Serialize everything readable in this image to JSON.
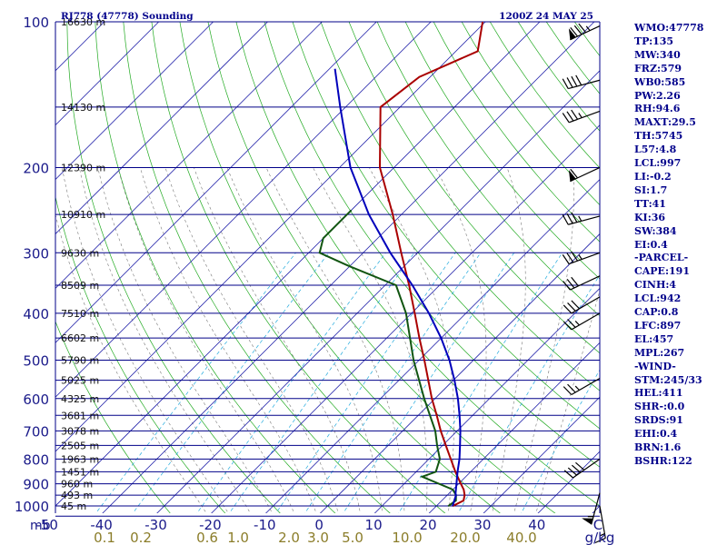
{
  "chart_data": {
    "type": "line",
    "title": "RJ778 (47778) Sounding",
    "time_label": "1200Z 24 MAY 25",
    "p_ticks": [
      100,
      200,
      300,
      400,
      500,
      600,
      700,
      800,
      900,
      1000
    ],
    "p_range": [
      100,
      1050
    ],
    "t_range": [
      -50,
      50
    ],
    "t_ticks": [
      -50,
      -40,
      -30,
      -20,
      -10,
      0,
      10,
      20,
      30,
      40
    ],
    "p_unit": "mb",
    "t_unit": "C",
    "heights": [
      {
        "p": 100,
        "label": "16630 m"
      },
      {
        "p": 150,
        "label": "14130 m"
      },
      {
        "p": 200,
        "label": "12390 m"
      },
      {
        "p": 250,
        "label": "10910 m"
      },
      {
        "p": 300,
        "label": "9630 m"
      },
      {
        "p": 350,
        "label": "8509 m"
      },
      {
        "p": 400,
        "label": "7510 m"
      },
      {
        "p": 450,
        "label": "6602 m"
      },
      {
        "p": 500,
        "label": "5790 m"
      },
      {
        "p": 550,
        "label": "5025 m"
      },
      {
        "p": 600,
        "label": "4325 m"
      },
      {
        "p": 650,
        "label": "3681 m"
      },
      {
        "p": 700,
        "label": "3078 m"
      },
      {
        "p": 750,
        "label": "2505 m"
      },
      {
        "p": 800,
        "label": "1963 m"
      },
      {
        "p": 850,
        "label": "1451 m"
      },
      {
        "p": 900,
        "label": "960 m"
      },
      {
        "p": 950,
        "label": "493 m"
      },
      {
        "p": 1000,
        "label": "45 m"
      }
    ],
    "mixing_ratio_labels": [
      "0.1",
      "0.2",
      "0.6",
      "1.0",
      "2.0",
      "3.0",
      "5.0",
      "10.0",
      "20.0",
      "40.0"
    ],
    "mixing_ratio_values": [
      0.1,
      0.2,
      0.6,
      1.0,
      2.0,
      3.0,
      5.0,
      10.0,
      20.0,
      40.0
    ],
    "mixing_ratio_unit": "g/kg",
    "series": [
      {
        "name": "Temperature",
        "color": "#aa0000",
        "points": [
          {
            "p": 1001,
            "t": 23.0
          },
          {
            "p": 975,
            "t": 24.0
          },
          {
            "p": 950,
            "t": 23.2
          },
          {
            "p": 925,
            "t": 22.0
          },
          {
            "p": 900,
            "t": 20.4
          },
          {
            "p": 850,
            "t": 17.2
          },
          {
            "p": 800,
            "t": 14.0
          },
          {
            "p": 750,
            "t": 10.6
          },
          {
            "p": 700,
            "t": 7.0
          },
          {
            "p": 650,
            "t": 3.4
          },
          {
            "p": 600,
            "t": -0.6
          },
          {
            "p": 550,
            "t": -4.6
          },
          {
            "p": 500,
            "t": -9.0
          },
          {
            "p": 450,
            "t": -14.0
          },
          {
            "p": 400,
            "t": -19.4
          },
          {
            "p": 350,
            "t": -25.6
          },
          {
            "p": 300,
            "t": -33.0
          },
          {
            "p": 250,
            "t": -41.6
          },
          {
            "p": 200,
            "t": -52.6
          },
          {
            "p": 150,
            "t": -63.6
          },
          {
            "p": 130,
            "t": -62.0
          },
          {
            "p": 115,
            "t": -56.0
          },
          {
            "p": 100,
            "t": -60.5
          }
        ]
      },
      {
        "name": "Dewpoint",
        "color": "#115511",
        "points": [
          {
            "p": 1001,
            "t": 22.2
          },
          {
            "p": 975,
            "t": 22.6
          },
          {
            "p": 950,
            "t": 21.6
          },
          {
            "p": 925,
            "t": 20.0
          },
          {
            "p": 870,
            "t": 12.0
          },
          {
            "p": 850,
            "t": 13.6
          },
          {
            "p": 800,
            "t": 12.0
          },
          {
            "p": 750,
            "t": 9.0
          },
          {
            "p": 700,
            "t": 6.0
          },
          {
            "p": 600,
            "t": -2.0
          },
          {
            "p": 500,
            "t": -11.0
          },
          {
            "p": 400,
            "t": -21.0
          },
          {
            "p": 350,
            "t": -28.0
          },
          {
            "p": 320,
            "t": -40.0
          },
          {
            "p": 300,
            "t": -48.0
          },
          {
            "p": 280,
            "t": -50.0
          },
          {
            "p": 260,
            "t": -50.0
          },
          {
            "p": 245,
            "t": -50.0
          }
        ]
      },
      {
        "name": "Parcel",
        "color": "#0000bb",
        "points": [
          {
            "p": 1001,
            "t": 23.0
          },
          {
            "p": 950,
            "t": 21.6
          },
          {
            "p": 942,
            "t": 21.2
          },
          {
            "p": 900,
            "t": 19.6
          },
          {
            "p": 850,
            "t": 17.6
          },
          {
            "p": 800,
            "t": 15.6
          },
          {
            "p": 750,
            "t": 13.2
          },
          {
            "p": 700,
            "t": 10.6
          },
          {
            "p": 650,
            "t": 7.6
          },
          {
            "p": 600,
            "t": 4.2
          },
          {
            "p": 550,
            "t": 0.2
          },
          {
            "p": 500,
            "t": -4.4
          },
          {
            "p": 450,
            "t": -10.0
          },
          {
            "p": 400,
            "t": -16.8
          },
          {
            "p": 350,
            "t": -25.0
          },
          {
            "p": 300,
            "t": -35.0
          },
          {
            "p": 250,
            "t": -46.0
          },
          {
            "p": 200,
            "t": -58.0
          },
          {
            "p": 150,
            "t": -71.0
          },
          {
            "p": 125,
            "t": -79.0
          }
        ]
      }
    ],
    "wind_barbs": [
      {
        "p": 102,
        "dir": 245,
        "speed_kt": 85
      },
      {
        "p": 132,
        "dir": 255,
        "speed_kt": 40
      },
      {
        "p": 153,
        "dir": 250,
        "speed_kt": 35
      },
      {
        "p": 200,
        "dir": 245,
        "speed_kt": 60
      },
      {
        "p": 252,
        "dir": 255,
        "speed_kt": 35
      },
      {
        "p": 300,
        "dir": 250,
        "speed_kt": 35
      },
      {
        "p": 335,
        "dir": 245,
        "speed_kt": 30
      },
      {
        "p": 370,
        "dir": 240,
        "speed_kt": 30
      },
      {
        "p": 400,
        "dir": 240,
        "speed_kt": 25
      },
      {
        "p": 545,
        "dir": 240,
        "speed_kt": 25
      },
      {
        "p": 800,
        "dir": 235,
        "speed_kt": 40
      },
      {
        "p": 940,
        "dir": 195,
        "speed_kt": 55
      },
      {
        "p": 1000,
        "dir": 170,
        "speed_kt": 15
      }
    ]
  },
  "stats": [
    "WMO:47778",
    "TP:135",
    "MW:340",
    "FRZ:579",
    "WB0:585",
    "PW:2.26",
    "RH:94.6",
    "MAXT:29.5",
    "TH:5745",
    "L57:4.8",
    "LCL:997",
    "LI:-0.2",
    "SI:1.7",
    "TT:41",
    "KI:36",
    "SW:384",
    "EI:0.4",
    "-PARCEL-",
    "CAPE:191",
    "CINH:4",
    "LCL:942",
    "CAP:0.8",
    "LFC:897",
    "EL:457",
    "MPL:267",
    "-WIND-",
    "STM:245/33",
    "HEL:411",
    "SHR-:0.0",
    "SRDS:91",
    "EHI:0.4",
    "BRN:1.6",
    "BSHR:122"
  ]
}
